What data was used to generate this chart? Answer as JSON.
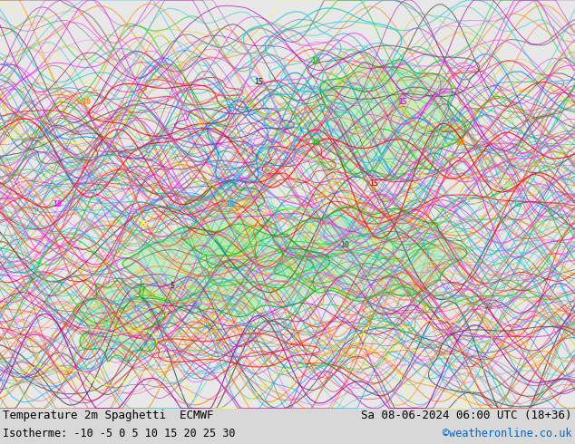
{
  "title_left_line1": "Temperature 2m Spaghetti  ECMWF",
  "title_left_line2": "Isotherme: -10 -5 0 5 10 15 20 25 30",
  "title_right_line1": "Sa 08-06-2024 06:00 UTC (18+36)",
  "title_right_line2": "©weatheronline.co.uk",
  "title_right_line2_color": "#0066cc",
  "bg_color": "#d8d8d8",
  "map_bg_color": "#e8e8e8",
  "sea_color": "#b8d8e8",
  "land_color": "#f0f0f0",
  "figure_width": 6.34,
  "figure_height": 4.9,
  "dpi": 100,
  "font_size_title": 9,
  "font_size_subtitle": 8.5,
  "isotherm_colors": {
    "-10": "#808080",
    "-5": "#606060",
    "0": "#404040",
    "5": "#00aaff",
    "10": "#00cc00",
    "15": "#ffff00",
    "20": "#ff8800",
    "25": "#ff00ff",
    "30": "#ff0000"
  },
  "bottom_bar_color": "#c8c8c8",
  "text_color": "#000000"
}
